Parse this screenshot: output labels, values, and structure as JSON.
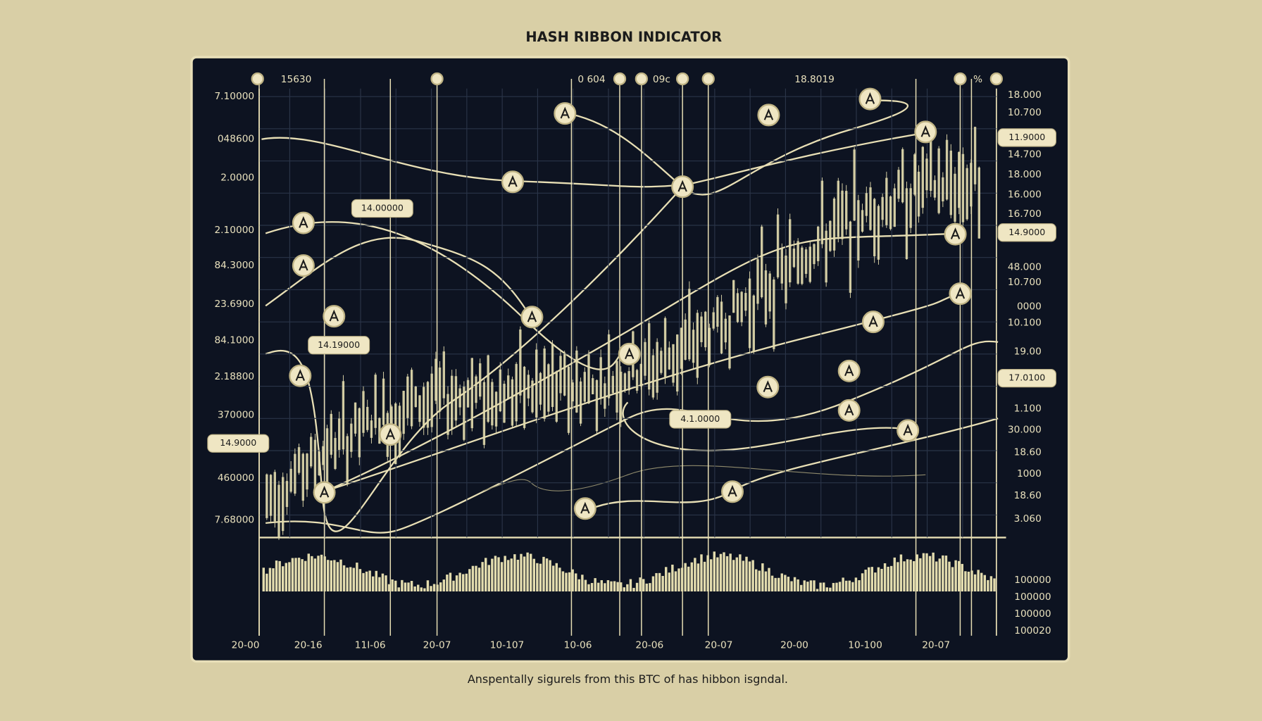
{
  "title": "HASH RIBBON INDICATOR",
  "caption": "Anspentally sigurels from this BTC of has hibbon isgndal.",
  "top_labels": [
    "15630",
    "0 604",
    "09c",
    "18.8019",
    "%"
  ],
  "left_labels": [
    "7.10000",
    "048600",
    "2.0000",
    "2.10000",
    "84.3000",
    "23.6900",
    "84.1000",
    "2.18800",
    "370000",
    "460000",
    "7.68000"
  ],
  "right_labels": [
    "18.000",
    "10.700",
    "14.700",
    "18.000",
    "16.000",
    "16.700",
    "48.000",
    "10.700",
    "0000",
    "10.100",
    "19.00",
    "1.100",
    "30.000",
    "18.60",
    "1000",
    "18.60",
    "3.060"
  ],
  "right_boxes": [
    "11.9000",
    "14.9000",
    "17.0100"
  ],
  "lower_labels": [
    "100000",
    "100000",
    "100000",
    "100020"
  ],
  "x_labels": [
    "20-00",
    "20-16",
    "11I-06",
    "20-07",
    "10-107",
    "10-06",
    "20-06",
    "20-07",
    "20-00",
    "10-100",
    "20-07"
  ],
  "callouts": [
    "14.00000",
    "14.19000",
    "14.9000",
    "4.1.0000"
  ]
}
